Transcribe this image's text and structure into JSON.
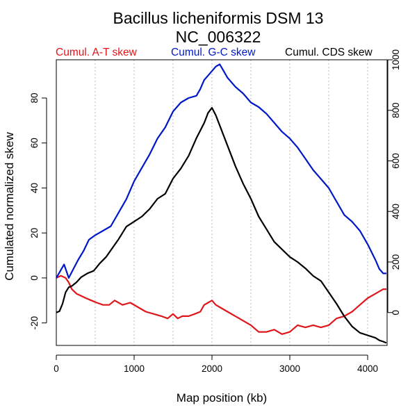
{
  "chart_data": {
    "type": "line",
    "title": "Bacillus licheniformis DSM 13",
    "subtitle": "NC_006322",
    "xlabel": "Map position (kb)",
    "ylabel": "Cumulated normalized skew",
    "xlim": [
      0,
      4250
    ],
    "ylim": [
      -30,
      97
    ],
    "y2lim": [
      -130,
      1000
    ],
    "x_ticks": [
      0,
      1000,
      2000,
      3000,
      4000
    ],
    "y_ticks": [
      -20,
      0,
      20,
      40,
      60,
      80
    ],
    "y2_ticks": [
      0,
      200,
      400,
      600,
      800,
      1000
    ],
    "vgrid_x": [
      0,
      500,
      1000,
      1500,
      2000,
      2500,
      3000,
      3500,
      4000
    ],
    "grid": "vertical dotted",
    "legend_placement": "top",
    "series": [
      {
        "name": "Cumul. A-T skew",
        "color": "#e0161b",
        "axis": "left",
        "x": [
          0,
          60,
          120,
          160,
          200,
          260,
          320,
          380,
          450,
          520,
          600,
          680,
          750,
          850,
          950,
          1050,
          1150,
          1250,
          1350,
          1430,
          1500,
          1560,
          1620,
          1700,
          1780,
          1850,
          1900,
          1950,
          2000,
          2050,
          2100,
          2200,
          2300,
          2400,
          2500,
          2600,
          2700,
          2800,
          2900,
          3000,
          3100,
          3200,
          3300,
          3400,
          3500,
          3600,
          3700,
          3800,
          3900,
          4000,
          4100,
          4150,
          4200,
          4240
        ],
        "y": [
          0,
          1,
          0,
          -2,
          -5,
          -7,
          -8,
          -9,
          -10,
          -11,
          -12,
          -12,
          -10,
          -12,
          -11,
          -13,
          -15,
          -16,
          -17,
          -18,
          -16,
          -18,
          -17,
          -17,
          -16,
          -15,
          -12,
          -11,
          -10,
          -12,
          -13,
          -15,
          -17,
          -19,
          -21,
          -24,
          -24,
          -23,
          -25,
          -24,
          -21,
          -22,
          -21,
          -22,
          -21,
          -18,
          -17,
          -15,
          -12,
          -9,
          -7,
          -6,
          -5,
          -5
        ]
      },
      {
        "name": "Cumul. G-C skew",
        "color": "#0017c8",
        "axis": "left",
        "x": [
          0,
          50,
          100,
          130,
          160,
          220,
          280,
          350,
          420,
          500,
          600,
          700,
          800,
          900,
          1000,
          1100,
          1200,
          1300,
          1400,
          1500,
          1600,
          1700,
          1800,
          1850,
          1900,
          1950,
          2000,
          2050,
          2100,
          2150,
          2200,
          2300,
          2400,
          2500,
          2600,
          2700,
          2800,
          2900,
          3000,
          3100,
          3200,
          3300,
          3400,
          3500,
          3600,
          3700,
          3800,
          3900,
          4000,
          4100,
          4150,
          4200,
          4240
        ],
        "y": [
          0,
          3,
          6,
          3,
          0,
          4,
          8,
          12,
          17,
          19,
          21,
          23,
          29,
          35,
          43,
          49,
          55,
          62,
          67,
          74,
          78,
          80,
          81,
          84,
          88,
          90,
          92,
          94,
          95,
          92,
          89,
          85,
          82,
          78,
          76,
          73,
          69,
          65,
          62,
          58,
          53,
          48,
          44,
          40,
          34,
          28,
          25,
          21,
          15,
          8,
          4,
          2,
          2
        ]
      },
      {
        "name": "Cumul. CDS skew",
        "color": "#000000",
        "axis": "right",
        "x": [
          0,
          40,
          80,
          120,
          160,
          200,
          260,
          320,
          400,
          480,
          560,
          640,
          720,
          800,
          900,
          1000,
          1100,
          1200,
          1300,
          1400,
          1500,
          1600,
          1700,
          1800,
          1900,
          1950,
          2000,
          2050,
          2100,
          2200,
          2300,
          2400,
          2500,
          2600,
          2700,
          2800,
          2900,
          3000,
          3100,
          3200,
          3300,
          3400,
          3500,
          3600,
          3700,
          3800,
          3900,
          4000,
          4100,
          4150,
          4200,
          4240
        ],
        "y": [
          0,
          5,
          35,
          80,
          100,
          105,
          120,
          140,
          155,
          165,
          195,
          220,
          255,
          290,
          340,
          360,
          380,
          410,
          450,
          470,
          530,
          570,
          620,
          690,
          750,
          790,
          810,
          780,
          740,
          660,
          580,
          510,
          450,
          380,
          330,
          280,
          250,
          220,
          200,
          175,
          145,
          125,
          80,
          35,
          -15,
          -55,
          -80,
          -90,
          -100,
          -110,
          -115,
          -120
        ]
      }
    ]
  }
}
